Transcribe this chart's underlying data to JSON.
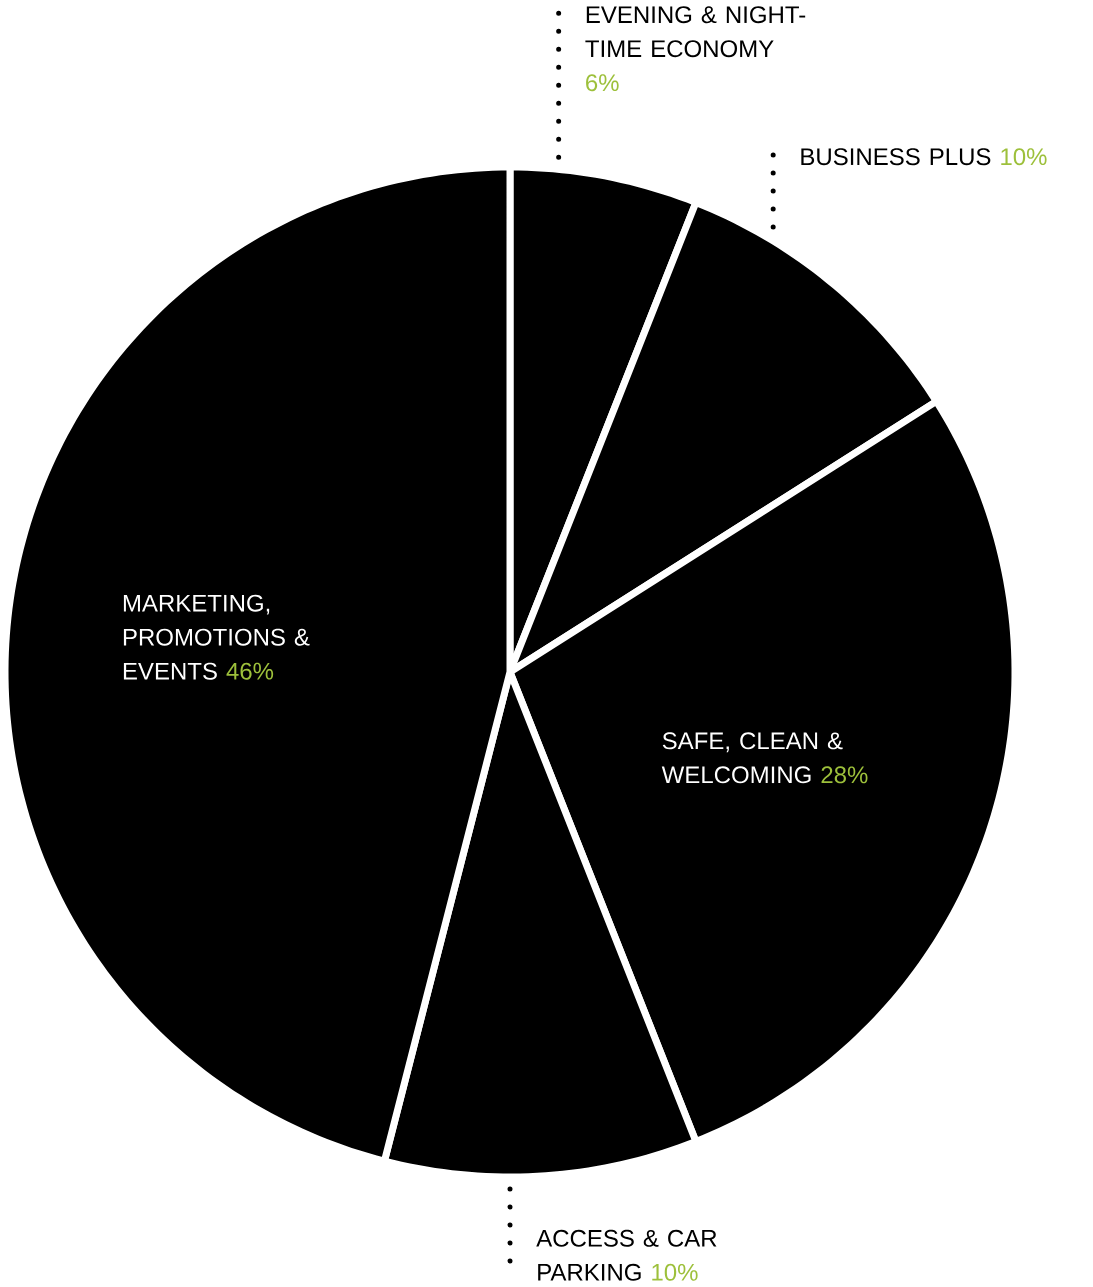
{
  "chart_data": {
    "type": "pie",
    "categories": [
      "EVENING & NIGHT-TIME ECONOMY",
      "BUSINESS PLUS",
      "SAFE, CLEAN & WELCOMING",
      "ACCESS & CAR PARKING",
      "MARKETING, PROMOTIONS & EVENTS"
    ],
    "values": [
      6,
      10,
      28,
      10,
      46
    ],
    "value_labels": [
      "6%",
      "10%",
      "28%",
      "10%",
      "46%"
    ],
    "colors": [
      "#000000",
      "#000000",
      "#000000",
      "#000000",
      "#000000"
    ]
  }
}
